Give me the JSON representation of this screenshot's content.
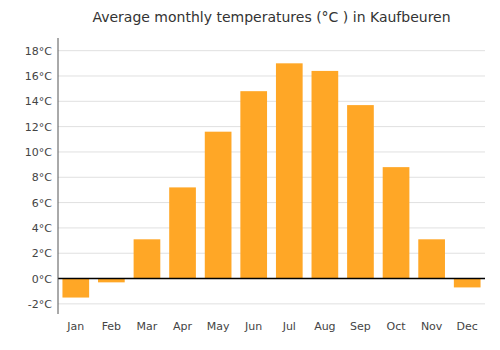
{
  "chart_data": {
    "type": "bar",
    "title": "Average monthly temperatures (°C ) in Kaufbeuren",
    "categories": [
      "Jan",
      "Feb",
      "Mar",
      "Apr",
      "May",
      "Jun",
      "Jul",
      "Aug",
      "Sep",
      "Oct",
      "Nov",
      "Dec"
    ],
    "values": [
      -1.5,
      -0.3,
      3.1,
      7.2,
      11.6,
      14.8,
      17.0,
      16.4,
      13.7,
      8.8,
      3.1,
      -0.7
    ],
    "color": "#FFA726",
    "ylim": [
      -2.8,
      19.0
    ],
    "yticks": [
      {
        "value": -2,
        "label": "-2°C"
      },
      {
        "value": 0,
        "label": "0°C"
      },
      {
        "value": 2,
        "label": "2°C"
      },
      {
        "value": 4,
        "label": "4°C"
      },
      {
        "value": 6,
        "label": "6°C"
      },
      {
        "value": 8,
        "label": "8°C"
      },
      {
        "value": 10,
        "label": "10°C"
      },
      {
        "value": 12,
        "label": "12°C"
      },
      {
        "value": 14,
        "label": "14°C"
      },
      {
        "value": 16,
        "label": "16°C"
      },
      {
        "value": 18,
        "label": "18°C"
      }
    ],
    "grid": true
  }
}
